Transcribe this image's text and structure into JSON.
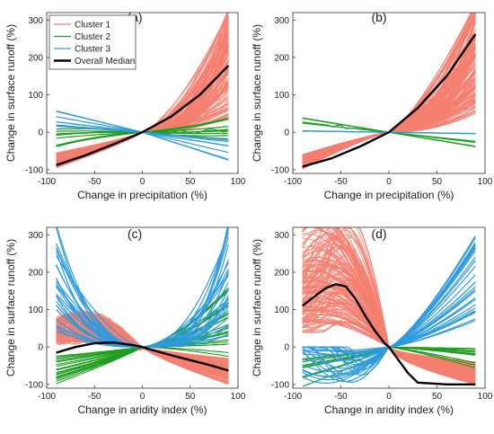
{
  "colors": {
    "cluster1": "#f47f70",
    "cluster2": "#1e9e1e",
    "cluster3": "#2e9be0",
    "median": "#000000",
    "axis": "#333333"
  },
  "chart_data": [
    {
      "type": "line",
      "panel_label": "(a)",
      "xlabel": "Change in precipitation (%)",
      "ylabel": "Change in surface runoff (%)",
      "xlim": [
        -100,
        100
      ],
      "ylim": [
        -110,
        320
      ],
      "xticks": [
        "-100",
        "-50",
        "0",
        "50",
        "100"
      ],
      "yticks": [
        "-100",
        "0",
        "100",
        "200",
        "300"
      ],
      "legend": {
        "placement": "top-left",
        "entries": [
          "Cluster 1",
          "Cluster 2",
          "Cluster 3",
          "Overall Median"
        ]
      },
      "x": [
        -90,
        -60,
        -30,
        0,
        30,
        60,
        90
      ],
      "series": [
        {
          "name": "Overall Median",
          "values": [
            -88,
            -62,
            -32,
            0,
            42,
            100,
            178
          ]
        }
      ]
    },
    {
      "type": "line",
      "panel_label": "(b)",
      "xlabel": "Change in precipitation (%)",
      "ylabel": "Change in surface runoff (%)",
      "xlim": [
        -100,
        100
      ],
      "ylim": [
        -110,
        320
      ],
      "xticks": [
        "-100",
        "-50",
        "0",
        "50",
        "100"
      ],
      "yticks": [
        "-100",
        "0",
        "100",
        "200",
        "300"
      ],
      "x": [
        -90,
        -60,
        -30,
        0,
        30,
        60,
        90
      ],
      "series": [
        {
          "name": "Overall Median",
          "values": [
            -92,
            -70,
            -38,
            0,
            65,
            150,
            262
          ]
        }
      ]
    },
    {
      "type": "line",
      "panel_label": "(c)",
      "xlabel": "Change in aridity index (%)",
      "ylabel": "Change in surface runoff (%)",
      "xlim": [
        -100,
        100
      ],
      "ylim": [
        -110,
        320
      ],
      "xticks": [
        "-100",
        "-50",
        "0",
        "50",
        "100"
      ],
      "yticks": [
        "-100",
        "0",
        "100",
        "200",
        "300"
      ],
      "x": [
        -90,
        -70,
        -50,
        -30,
        -10,
        0,
        10,
        30,
        50,
        70,
        90
      ],
      "series": [
        {
          "name": "Overall Median",
          "values": [
            -15,
            0,
            10,
            12,
            5,
            0,
            -8,
            -22,
            -35,
            -48,
            -63
          ]
        }
      ]
    },
    {
      "type": "line",
      "panel_label": "(d)",
      "xlabel": "Change in aridity index (%)",
      "ylabel": "Change in surface runoff (%)",
      "xlim": [
        -100,
        100
      ],
      "ylim": [
        -110,
        320
      ],
      "xticks": [
        "-100",
        "-50",
        "0",
        "50",
        "100"
      ],
      "yticks": [
        "-100",
        "0",
        "100",
        "200",
        "300"
      ],
      "x": [
        -90,
        -75,
        -65,
        -55,
        -45,
        -35,
        -25,
        -15,
        -5,
        0,
        10,
        20,
        30,
        60,
        90
      ],
      "series": [
        {
          "name": "Overall Median",
          "values": [
            110,
            140,
            158,
            168,
            162,
            130,
            85,
            45,
            12,
            0,
            -35,
            -70,
            -95,
            -100,
            -100
          ]
        }
      ]
    }
  ]
}
